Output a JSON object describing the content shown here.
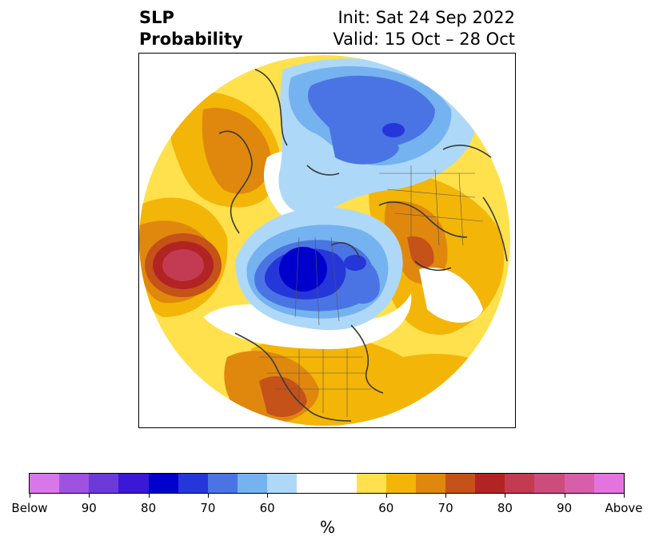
{
  "title": {
    "left_line1": "SLP",
    "left_line2": "Probability",
    "right_line1": "Init: Sat 24 Sep 2022",
    "right_line2": "Valid: 15 Oct – 28 Oct"
  },
  "colorbar": {
    "segments": [
      "#d777ea",
      "#9f52e2",
      "#6b3ad9",
      "#3a18d6",
      "#0000cc",
      "#2537d9",
      "#4a74e3",
      "#75b2f0",
      "#aed8f8",
      "#ffffff",
      "#ffe14d",
      "#f3b507",
      "#df880d",
      "#c55218",
      "#b22323",
      "#c23b52",
      "#cc4d7b",
      "#d85ea9",
      "#e473df"
    ],
    "tick_labels": [
      "Below",
      "90",
      "80",
      "70",
      "60",
      "60",
      "70",
      "80",
      "90",
      "Above"
    ],
    "unit": "%"
  },
  "map": {
    "description_free": true,
    "projection": "north-polar-stereographic",
    "land_outline_color": "#3a3a3a"
  }
}
